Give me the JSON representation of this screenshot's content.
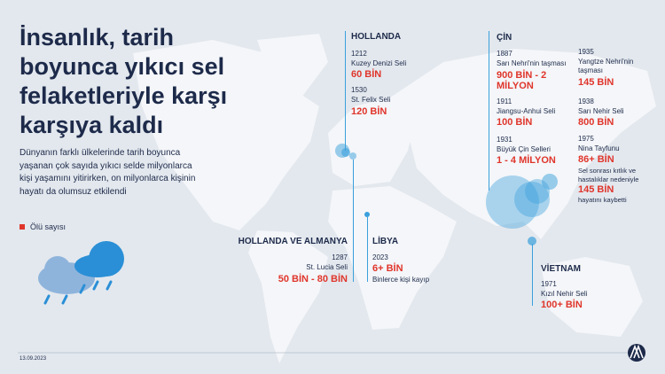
{
  "title": "İnsanlık, tarih boyunca yıkıcı sel felaketleriyle karşı karşıya kaldı",
  "description": "Dünyanın farklı ülkelerinde tarih boyunca yaşanan çok sayıda yıkıcı selde milyonlarca kişi yaşamını yitirirken, on milyonlarca kişinin hayatı da olumsuz etkilendi",
  "legend": "Ölü sayısı",
  "date": "13.09.2023",
  "regions": [
    {
      "name": "HOLLANDA",
      "events": [
        {
          "year": "1212",
          "event": "Kuzey Denizi Seli",
          "deaths": "60 BİN"
        },
        {
          "year": "1530",
          "event": "St. Felix Seli",
          "deaths": "120 BİN"
        }
      ]
    },
    {
      "name": "HOLLANDA VE ALMANYA",
      "events": [
        {
          "year": "1287",
          "event": "St. Lucia Seli",
          "deaths": "50 BİN - 80 BİN"
        }
      ]
    },
    {
      "name": "LİBYA",
      "events": [
        {
          "year": "2023",
          "deaths": "6+ BİN",
          "note": "Binlerce kişi kayıp"
        }
      ]
    },
    {
      "name": "ÇİN",
      "events": [
        {
          "year": "1887",
          "event": "Sarı Nehri'nin taşması",
          "deaths": "900 BİN - 2 MİLYON"
        },
        {
          "year": "1911",
          "event": "Jiangsu-Anhui Seli",
          "deaths": "100 BİN"
        },
        {
          "year": "1931",
          "event": "Büyük Çin Selleri",
          "deaths": "1 - 4 MİLYON"
        },
        {
          "year": "1935",
          "event": "Yangtze Nehri'nin taşması",
          "deaths": "145 BİN"
        },
        {
          "year": "1938",
          "event": "Sarı Nehir Seli",
          "deaths": "800 BİN"
        },
        {
          "year": "1975",
          "event": "Nina Tayfunu",
          "deaths": "86+ BİN",
          "note": "Sel sonrası kıtlık ve hastalıklar nedeniyle",
          "note_deaths": "145 BİN",
          "note_end": "hayatını kaybetti"
        }
      ]
    },
    {
      "name": "VİETNAM",
      "events": [
        {
          "year": "1971",
          "event": "Kızıl Nehir Seli",
          "deaths": "100+ BİN"
        }
      ]
    }
  ]
}
